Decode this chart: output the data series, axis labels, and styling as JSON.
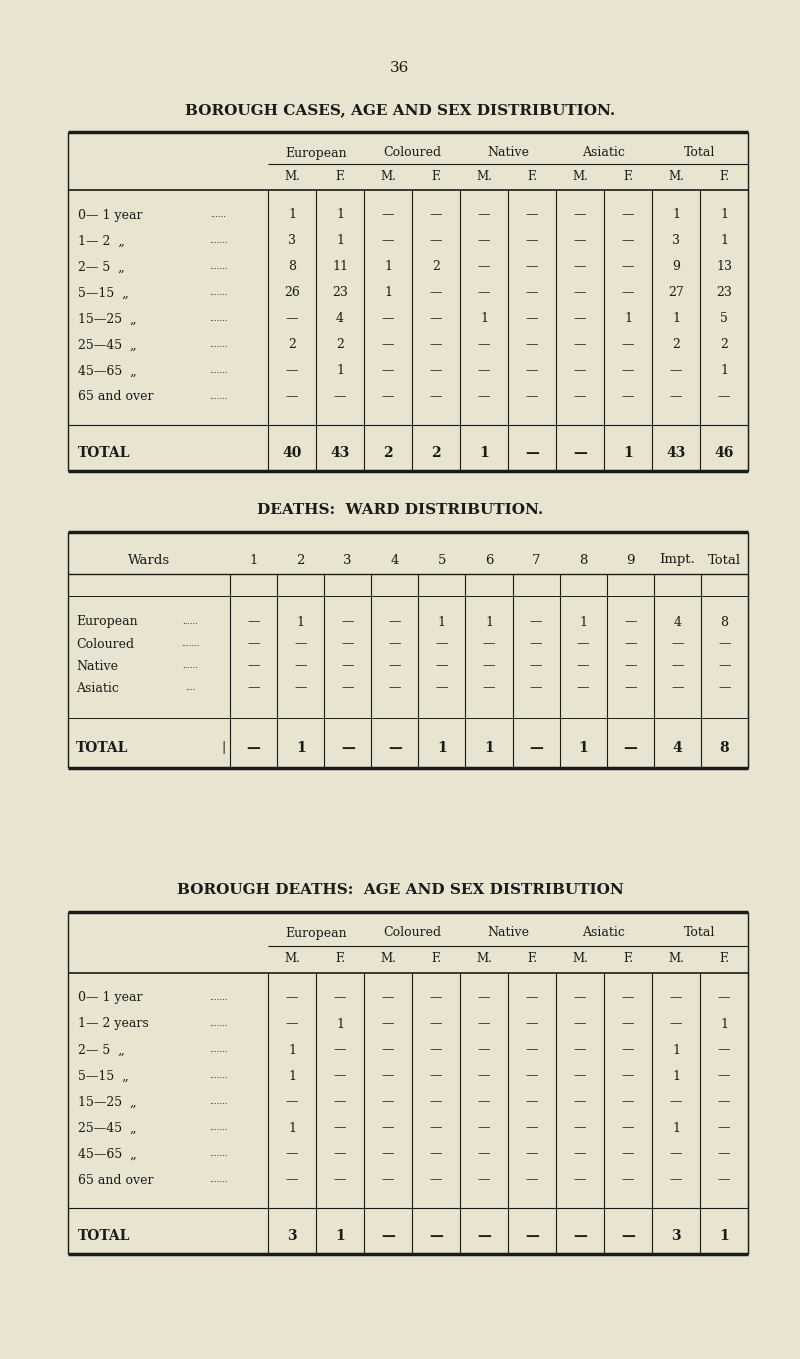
{
  "page_number": "36",
  "bg_color": "#e8e4d0",
  "text_color": "#1a1a1a",
  "table1_title": "BOROUGH CASES, AGE AND SEX DISTRIBUTION.",
  "table1_col_headers": [
    "European",
    "Coloured",
    "Native",
    "Asiatic",
    "Total"
  ],
  "table1_sub_headers": [
    "M.",
    "F.",
    "M.",
    "F.",
    "M.",
    "F.",
    "M.",
    "F.",
    "M.",
    "F."
  ],
  "table1_row_labels": [
    "0— 1 year",
    "1— 2  „",
    "2— 5  „",
    "5—15  „",
    "15—25  „",
    "25—45  „",
    "45—65  „",
    "65 and over",
    "TOTAL"
  ],
  "table1_data": [
    [
      "1",
      "1",
      "—",
      "—",
      "—",
      "—",
      "—",
      "—",
      "1",
      "1"
    ],
    [
      "3",
      "1",
      "—",
      "—",
      "—",
      "—",
      "—",
      "—",
      "3",
      "1"
    ],
    [
      "8",
      "11",
      "1",
      "2",
      "—",
      "—",
      "—",
      "—",
      "9",
      "13"
    ],
    [
      "26",
      "23",
      "1",
      "—",
      "—",
      "—",
      "—",
      "—",
      "27",
      "23"
    ],
    [
      "—",
      "4",
      "—",
      "—",
      "1",
      "—",
      "—",
      "1",
      "1",
      "5"
    ],
    [
      "2",
      "2",
      "—",
      "—",
      "—",
      "—",
      "—",
      "—",
      "2",
      "2"
    ],
    [
      "—",
      "1",
      "—",
      "—",
      "—",
      "—",
      "—",
      "—",
      "—",
      "1"
    ],
    [
      "—",
      "—",
      "—",
      "—",
      "—",
      "—",
      "—",
      "—",
      "—",
      "—"
    ],
    [
      "40",
      "43",
      "2",
      "2",
      "1",
      "—",
      "—",
      "1",
      "43",
      "46"
    ]
  ],
  "table2_title": "DEATHS:  WARD DISTRIBUTION.",
  "table2_col_headers": [
    "Wards",
    "1",
    "2",
    "3",
    "4",
    "5",
    "6",
    "7",
    "8",
    "9",
    "Impt.",
    "Total"
  ],
  "table2_row_labels": [
    "European",
    "Coloured",
    "Native",
    "Asiatic",
    "TOTAL"
  ],
  "table2_dotted_labels": [
    "......",
    ".......",
    "......",
    "...."
  ],
  "table2_data": [
    [
      "—",
      "1",
      "—",
      "—",
      "1",
      "1",
      "—",
      "1",
      "—",
      "4",
      "8"
    ],
    [
      "—",
      "—",
      "—",
      "—",
      "—",
      "—",
      "—",
      "—",
      "—",
      "—",
      "—"
    ],
    [
      "—",
      "—",
      "—",
      "—",
      "—",
      "—",
      "—",
      "—",
      "—",
      "—",
      "—"
    ],
    [
      "—",
      "—",
      "—",
      "—",
      "—",
      "—",
      "—",
      "—",
      "—",
      "—",
      "—"
    ],
    [
      "—",
      "1",
      "—",
      "—",
      "1",
      "1",
      "—",
      "1",
      "—",
      "4",
      "8"
    ]
  ],
  "table3_title": "BOROUGH DEATHS:  AGE AND SEX DISTRIBUTION",
  "table3_col_headers": [
    "European",
    "Coloured",
    "Native",
    "Asiatic",
    "Total"
  ],
  "table3_sub_headers": [
    "M.",
    "F.",
    "M.",
    "F.",
    "M.",
    "F.",
    "M.",
    "F.",
    "M.",
    "F."
  ],
  "table3_row_labels": [
    "0— 1 year",
    "1— 2 years",
    "2— 5  „",
    "5—15  „",
    "15—25  „",
    "25—45  „",
    "45—65  „",
    "65 and over",
    "TOTAL"
  ],
  "table3_data": [
    [
      "—",
      "—",
      "—",
      "—",
      "—",
      "—",
      "—",
      "—",
      "—",
      "—"
    ],
    [
      "—",
      "1",
      "—",
      "—",
      "—",
      "—",
      "—",
      "—",
      "—",
      "1"
    ],
    [
      "1",
      "—",
      "—",
      "—",
      "—",
      "—",
      "—",
      "—",
      "1",
      "—"
    ],
    [
      "1",
      "—",
      "—",
      "—",
      "—",
      "—",
      "—",
      "—",
      "1",
      "—"
    ],
    [
      "—",
      "—",
      "—",
      "—",
      "—",
      "—",
      "—",
      "—",
      "—",
      "—"
    ],
    [
      "1",
      "—",
      "—",
      "—",
      "—",
      "—",
      "—",
      "—",
      "1",
      "—"
    ],
    [
      "—",
      "—",
      "—",
      "—",
      "—",
      "—",
      "—",
      "—",
      "—",
      "—"
    ],
    [
      "—",
      "—",
      "—",
      "—",
      "—",
      "—",
      "—",
      "—",
      "—",
      "—"
    ],
    [
      "3",
      "1",
      "—",
      "—",
      "—",
      "—",
      "—",
      "—",
      "3",
      "1"
    ]
  ]
}
